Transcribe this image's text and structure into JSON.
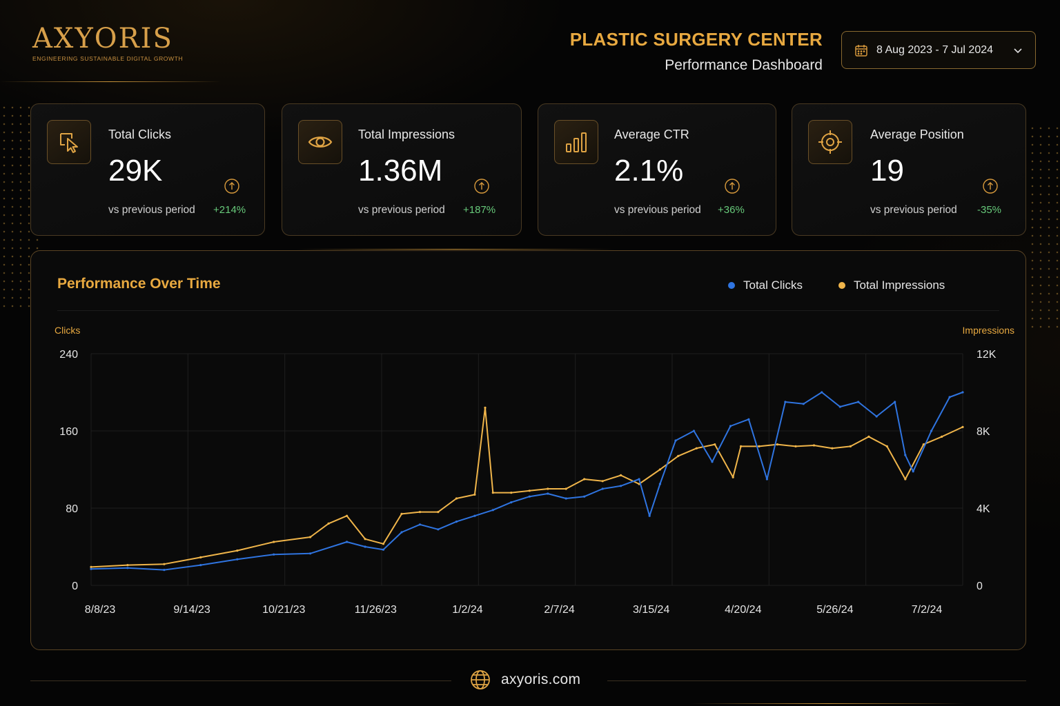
{
  "brand": {
    "name": "AXYORIS",
    "tagline": "ENGINEERING SUSTAINABLE DIGITAL GROWTH"
  },
  "header": {
    "client": "PLASTIC SURGERY CENTER",
    "subtitle": "Performance Dashboard",
    "date_range": "8 Aug 2023 - 7 Jul 2024"
  },
  "kpis": [
    {
      "label": "Total Clicks",
      "value": "29K",
      "compare": "vs previous period",
      "delta": "+214%",
      "icon": "cursor-click-icon"
    },
    {
      "label": "Total Impressions",
      "value": "1.36M",
      "compare": "vs previous period",
      "delta": "+187%",
      "icon": "eye-icon"
    },
    {
      "label": "Average CTR",
      "value": "2.1%",
      "compare": "vs previous period",
      "delta": "+36%",
      "icon": "bar-chart-icon"
    },
    {
      "label": "Average Position",
      "value": "19",
      "compare": "vs previous period",
      "delta": "-35%",
      "icon": "target-icon"
    }
  ],
  "colors": {
    "accent": "#e8a940",
    "clicks": "#2f74e0",
    "impressions": "#f0b54a",
    "positive": "#67c97a"
  },
  "footer": {
    "url": "axyoris.com",
    "icon": "globe-icon"
  },
  "chart_data": {
    "type": "line",
    "title": "Performance Over Time",
    "x_ticks": [
      "8/8/23",
      "9/14/23",
      "10/21/23",
      "11/26/23",
      "1/2/24",
      "2/7/24",
      "3/15/24",
      "4/20/24",
      "5/26/24",
      "7/2/24"
    ],
    "ylabel_left": "Clicks",
    "ylabel_right": "Impressions",
    "y_left_ticks": [
      "0",
      "80",
      "160",
      "240"
    ],
    "y_right_ticks": [
      "0",
      "4K",
      "8K",
      "12K"
    ],
    "ylim_left": [
      0,
      240
    ],
    "ylim_right": [
      0,
      12000
    ],
    "legend_position": "top-right",
    "grid": true,
    "series": [
      {
        "name": "Total Clicks",
        "axis": "left",
        "x": [
          "2023-08-08",
          "2023-08-22",
          "2023-09-05",
          "2023-09-19",
          "2023-10-03",
          "2023-10-17",
          "2023-10-31",
          "2023-11-14",
          "2023-11-21",
          "2023-11-28",
          "2023-12-05",
          "2023-12-12",
          "2023-12-19",
          "2023-12-26",
          "2024-01-02",
          "2024-01-09",
          "2024-01-16",
          "2024-01-23",
          "2024-01-30",
          "2024-02-06",
          "2024-02-13",
          "2024-02-20",
          "2024-02-27",
          "2024-03-05",
          "2024-03-09",
          "2024-03-13",
          "2024-03-19",
          "2024-03-26",
          "2024-04-02",
          "2024-04-09",
          "2024-04-16",
          "2024-04-23",
          "2024-04-30",
          "2024-05-07",
          "2024-05-14",
          "2024-05-21",
          "2024-05-28",
          "2024-06-04",
          "2024-06-11",
          "2024-06-15",
          "2024-06-18",
          "2024-06-25",
          "2024-07-02",
          "2024-07-07"
        ],
        "y": [
          17,
          18,
          16,
          21,
          27,
          32,
          33,
          45,
          40,
          37,
          55,
          63,
          58,
          66,
          72,
          78,
          86,
          92,
          95,
          90,
          92,
          100,
          103,
          110,
          72,
          105,
          150,
          160,
          128,
          165,
          172,
          110,
          190,
          188,
          200,
          185,
          190,
          175,
          190,
          135,
          118,
          160,
          195,
          200
        ]
      },
      {
        "name": "Total Impressions",
        "axis": "right",
        "x": [
          "2023-08-08",
          "2023-08-22",
          "2023-09-05",
          "2023-09-19",
          "2023-10-03",
          "2023-10-17",
          "2023-10-31",
          "2023-11-07",
          "2023-11-14",
          "2023-11-21",
          "2023-11-28",
          "2023-12-05",
          "2023-12-12",
          "2023-12-19",
          "2023-12-26",
          "2024-01-02",
          "2024-01-06",
          "2024-01-09",
          "2024-01-16",
          "2024-01-23",
          "2024-01-30",
          "2024-02-06",
          "2024-02-13",
          "2024-02-20",
          "2024-02-27",
          "2024-03-05",
          "2024-03-13",
          "2024-03-20",
          "2024-03-27",
          "2024-04-03",
          "2024-04-10",
          "2024-04-13",
          "2024-04-20",
          "2024-04-27",
          "2024-05-04",
          "2024-05-11",
          "2024-05-18",
          "2024-05-25",
          "2024-06-01",
          "2024-06-08",
          "2024-06-15",
          "2024-06-22",
          "2024-06-29",
          "2024-07-07"
        ],
        "y": [
          950,
          1050,
          1100,
          1450,
          1800,
          2250,
          2500,
          3200,
          3600,
          2400,
          2150,
          3700,
          3800,
          3800,
          4500,
          4700,
          9200,
          4800,
          4800,
          4900,
          5000,
          5000,
          5500,
          5400,
          5700,
          5250,
          6000,
          6700,
          7100,
          7300,
          5600,
          7200,
          7200,
          7300,
          7200,
          7250,
          7100,
          7200,
          7700,
          7200,
          5500,
          7300,
          7700,
          8200
        ]
      }
    ]
  }
}
